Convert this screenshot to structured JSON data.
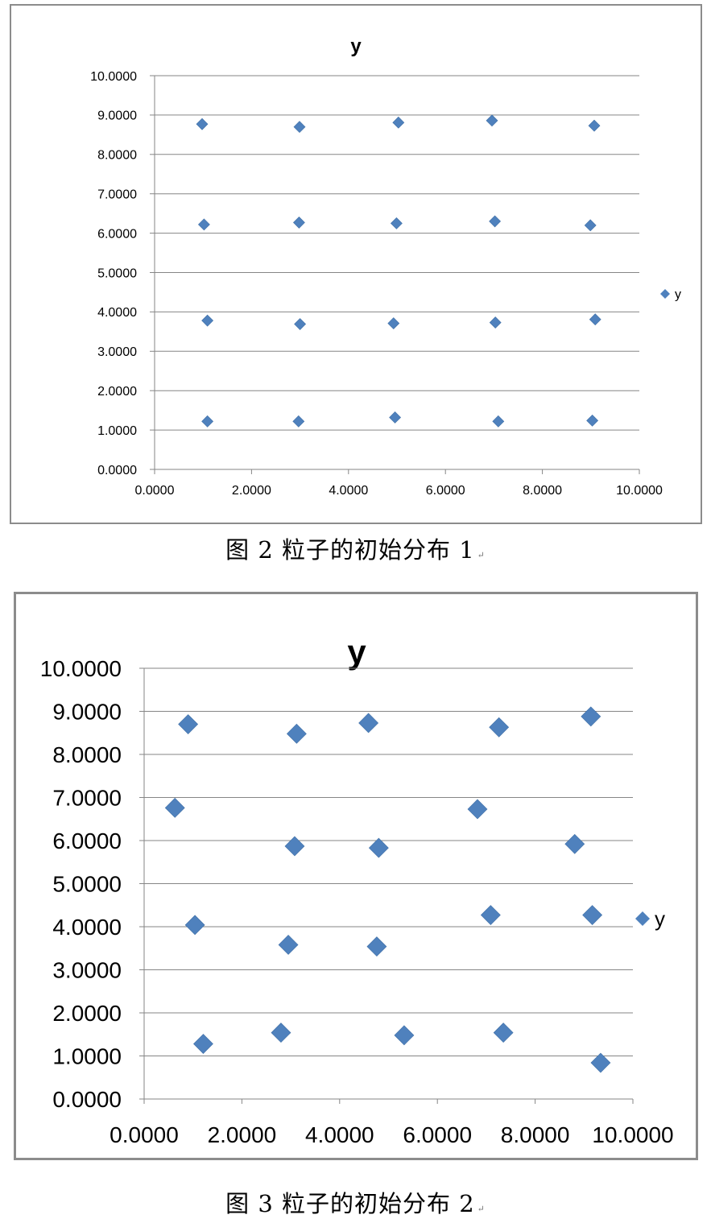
{
  "captions": {
    "fig2": "图 2  粒子的初始分布 1",
    "fig3": "图 3  粒子的初始分布 2",
    "return_mark": "↵"
  },
  "colors": {
    "marker": "#4f81bd",
    "gridline": "#868686",
    "frame": "#8c8c8c"
  },
  "chart_data": [
    {
      "type": "scatter",
      "title": "y",
      "xlabel": "",
      "ylabel": "",
      "xlim": [
        0,
        10
      ],
      "ylim": [
        0,
        10
      ],
      "x_ticks": [
        "0.0000",
        "2.0000",
        "4.0000",
        "6.0000",
        "8.0000",
        "10.0000"
      ],
      "y_ticks": [
        "0.0000",
        "1.0000",
        "2.0000",
        "3.0000",
        "4.0000",
        "5.0000",
        "6.0000",
        "7.0000",
        "8.0000",
        "9.0000",
        "10.0000"
      ],
      "grid": "horizontal",
      "legend_position": "right",
      "marker": "diamond",
      "series": [
        {
          "name": "y",
          "points": [
            [
              0.98,
              8.77
            ],
            [
              2.99,
              8.7
            ],
            [
              5.03,
              8.81
            ],
            [
              6.96,
              8.86
            ],
            [
              9.07,
              8.73
            ],
            [
              1.02,
              6.22
            ],
            [
              2.98,
              6.27
            ],
            [
              4.99,
              6.25
            ],
            [
              7.02,
              6.3
            ],
            [
              8.99,
              6.2
            ],
            [
              1.09,
              3.78
            ],
            [
              3.0,
              3.69
            ],
            [
              4.93,
              3.71
            ],
            [
              7.03,
              3.73
            ],
            [
              9.09,
              3.81
            ],
            [
              1.09,
              1.22
            ],
            [
              2.97,
              1.22
            ],
            [
              4.96,
              1.32
            ],
            [
              7.09,
              1.22
            ],
            [
              9.03,
              1.24
            ]
          ]
        }
      ]
    },
    {
      "type": "scatter",
      "title": "y",
      "xlabel": "",
      "ylabel": "",
      "xlim": [
        0,
        10
      ],
      "ylim": [
        0,
        10
      ],
      "x_ticks": [
        "0.0000",
        "2.0000",
        "4.0000",
        "6.0000",
        "8.0000",
        "10.0000"
      ],
      "y_ticks": [
        "0.0000",
        "1.0000",
        "2.0000",
        "3.0000",
        "4.0000",
        "5.0000",
        "6.0000",
        "7.0000",
        "8.0000",
        "9.0000",
        "10.0000"
      ],
      "grid": "horizontal",
      "legend_position": "right",
      "marker": "diamond",
      "series": [
        {
          "name": "y",
          "points": [
            [
              0.9,
              8.7
            ],
            [
              3.12,
              8.48
            ],
            [
              4.59,
              8.73
            ],
            [
              7.26,
              8.63
            ],
            [
              9.14,
              8.88
            ],
            [
              0.63,
              6.76
            ],
            [
              6.82,
              6.73
            ],
            [
              3.08,
              5.87
            ],
            [
              4.8,
              5.83
            ],
            [
              8.81,
              5.92
            ],
            [
              1.04,
              4.04
            ],
            [
              7.09,
              4.27
            ],
            [
              9.17,
              4.27
            ],
            [
              2.95,
              3.58
            ],
            [
              4.76,
              3.54
            ],
            [
              1.21,
              1.28
            ],
            [
              2.8,
              1.54
            ],
            [
              5.32,
              1.48
            ],
            [
              7.35,
              1.54
            ],
            [
              9.34,
              0.84
            ]
          ]
        }
      ]
    }
  ]
}
